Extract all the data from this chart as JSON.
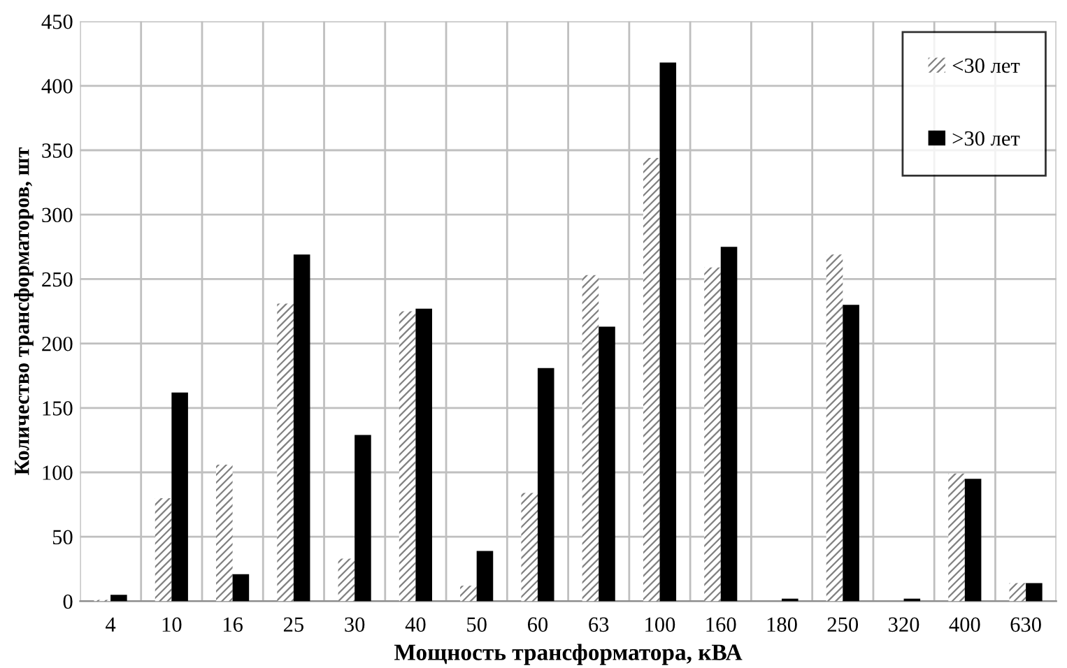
{
  "chart_data": {
    "type": "bar",
    "xlabel": "Мощность трансформатора, кВА",
    "ylabel": "Количество трансформаторов, шт",
    "categories": [
      "4",
      "10",
      "16",
      "25",
      "30",
      "40",
      "50",
      "60",
      "63",
      "100",
      "160",
      "180",
      "250",
      "320",
      "400",
      "630"
    ],
    "series": [
      {
        "name": "<30 лет",
        "color": "#808080",
        "values": [
          1,
          80,
          106,
          231,
          33,
          225,
          12,
          84,
          253,
          344,
          259,
          0,
          269,
          0,
          99,
          14
        ]
      },
      {
        "name": ">30 лет",
        "color": "#000000",
        "values": [
          5,
          162,
          21,
          269,
          129,
          227,
          39,
          181,
          213,
          418,
          275,
          2,
          230,
          2,
          95,
          14
        ]
      }
    ],
    "ylim": [
      0,
      450
    ],
    "yticks": [
      0,
      50,
      100,
      150,
      200,
      250,
      300,
      350,
      400,
      450
    ],
    "grid": true,
    "legend": "top right"
  }
}
